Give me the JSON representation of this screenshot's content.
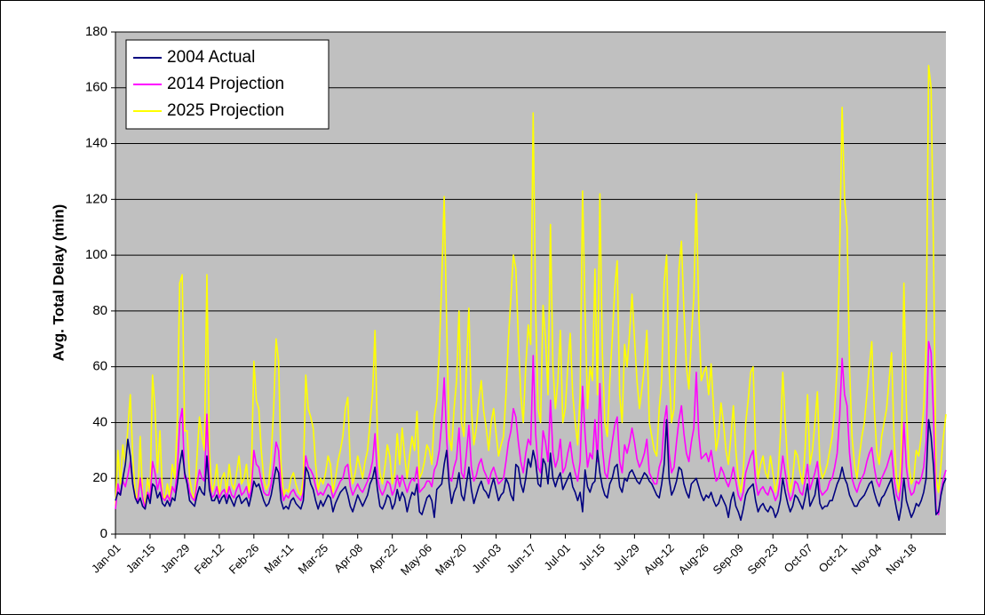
{
  "chart_data": {
    "type": "line",
    "y_label": "Avg. Total Delay (min)",
    "ylim": [
      0,
      180
    ],
    "yticks": [
      0,
      20,
      40,
      60,
      80,
      100,
      120,
      140,
      160,
      180
    ],
    "grid": true,
    "legend": "top-left",
    "categories": [
      "Jan-01",
      null,
      null,
      null,
      null,
      null,
      null,
      null,
      null,
      null,
      null,
      null,
      null,
      null,
      "Jan-15",
      null,
      null,
      null,
      null,
      null,
      null,
      null,
      null,
      null,
      null,
      null,
      null,
      null,
      "Jan-29",
      null,
      null,
      null,
      null,
      null,
      null,
      null,
      null,
      null,
      null,
      null,
      null,
      null,
      "Feb-12",
      null,
      null,
      null,
      null,
      null,
      null,
      null,
      null,
      null,
      null,
      null,
      null,
      null,
      "Feb-26",
      null,
      null,
      null,
      null,
      null,
      null,
      null,
      null,
      null,
      null,
      null,
      null,
      null,
      "Mar-11",
      null,
      null,
      null,
      null,
      null,
      null,
      null,
      null,
      null,
      null,
      null,
      null,
      null,
      "Mar-25",
      null,
      null,
      null,
      null,
      null,
      null,
      null,
      null,
      null,
      null,
      null,
      null,
      null,
      "Apr-08",
      null,
      null,
      null,
      null,
      null,
      null,
      null,
      null,
      null,
      null,
      null,
      null,
      null,
      "Apr-22",
      null,
      null,
      null,
      null,
      null,
      null,
      null,
      null,
      null,
      null,
      null,
      null,
      null,
      "May-06",
      null,
      null,
      null,
      null,
      null,
      null,
      null,
      null,
      null,
      null,
      null,
      null,
      null,
      "May-20",
      null,
      null,
      null,
      null,
      null,
      null,
      null,
      null,
      null,
      null,
      null,
      null,
      null,
      "Jun-03",
      null,
      null,
      null,
      null,
      null,
      null,
      null,
      null,
      null,
      null,
      null,
      null,
      null,
      "Jun-17",
      null,
      null,
      null,
      null,
      null,
      null,
      null,
      null,
      null,
      null,
      null,
      null,
      null,
      "Jul-01",
      null,
      null,
      null,
      null,
      null,
      null,
      null,
      null,
      null,
      null,
      null,
      null,
      null,
      "Jul-15",
      null,
      null,
      null,
      null,
      null,
      null,
      null,
      null,
      null,
      null,
      null,
      null,
      null,
      "Jul-29",
      null,
      null,
      null,
      null,
      null,
      null,
      null,
      null,
      null,
      null,
      null,
      null,
      null,
      "Aug-12",
      null,
      null,
      null,
      null,
      null,
      null,
      null,
      null,
      null,
      null,
      null,
      null,
      null,
      "Aug-26",
      null,
      null,
      null,
      null,
      null,
      null,
      null,
      null,
      null,
      null,
      null,
      null,
      null,
      "Sep-09",
      null,
      null,
      null,
      null,
      null,
      null,
      null,
      null,
      null,
      null,
      null,
      null,
      null,
      "Sep-23",
      null,
      null,
      null,
      null,
      null,
      null,
      null,
      null,
      null,
      null,
      null,
      null,
      null,
      "Oct-07",
      null,
      null,
      null,
      null,
      null,
      null,
      null,
      null,
      null,
      null,
      null,
      null,
      null,
      "Oct-21",
      null,
      null,
      null,
      null,
      null,
      null,
      null,
      null,
      null,
      null,
      null,
      null,
      null,
      "Nov-04",
      null,
      null,
      null,
      null,
      null,
      null,
      null,
      null,
      null,
      null,
      null,
      null,
      null,
      "Nov-18",
      null,
      null,
      null,
      null,
      null,
      null,
      null,
      null,
      null,
      null,
      null,
      null,
      null,
      null
    ],
    "series": [
      {
        "name": "2004 Actual",
        "color": "#000080",
        "values": [
          12,
          15,
          14,
          20,
          25,
          34,
          28,
          18,
          13,
          11,
          13,
          10,
          9,
          14,
          11,
          18,
          17,
          13,
          15,
          11,
          10,
          12,
          10,
          13,
          12,
          18,
          25,
          30,
          22,
          18,
          12,
          11,
          10,
          14,
          17,
          15,
          14,
          28,
          16,
          12,
          12,
          14,
          11,
          13,
          14,
          11,
          14,
          12,
          10,
          13,
          14,
          11,
          12,
          13,
          10,
          14,
          19,
          17,
          18,
          15,
          12,
          10,
          11,
          14,
          19,
          24,
          22,
          12,
          9,
          10,
          9,
          12,
          13,
          11,
          10,
          9,
          12,
          24,
          22,
          18,
          16,
          12,
          9,
          12,
          10,
          12,
          14,
          13,
          8,
          11,
          13,
          15,
          16,
          17,
          14,
          10,
          8,
          11,
          14,
          12,
          10,
          12,
          14,
          18,
          20,
          24,
          16,
          10,
          9,
          11,
          14,
          13,
          9,
          11,
          16,
          12,
          15,
          13,
          8,
          12,
          15,
          14,
          18,
          8,
          7,
          10,
          13,
          14,
          12,
          6,
          16,
          17,
          18,
          25,
          30,
          18,
          11,
          15,
          17,
          22,
          14,
          12,
          18,
          24,
          16,
          11,
          14,
          17,
          19,
          16,
          15,
          13,
          17,
          20,
          16,
          12,
          14,
          15,
          20,
          18,
          14,
          12,
          25,
          24,
          18,
          15,
          20,
          27,
          24,
          30,
          26,
          18,
          17,
          27,
          25,
          18,
          29,
          20,
          17,
          20,
          22,
          16,
          18,
          20,
          22,
          17,
          15,
          12,
          15,
          8,
          23,
          17,
          15,
          18,
          19,
          30,
          22,
          17,
          14,
          13,
          18,
          20,
          24,
          25,
          17,
          15,
          20,
          19,
          22,
          23,
          21,
          19,
          18,
          20,
          22,
          21,
          19,
          18,
          16,
          14,
          13,
          18,
          25,
          41,
          20,
          14,
          16,
          19,
          24,
          23,
          18,
          15,
          13,
          18,
          19,
          20,
          17,
          14,
          12,
          14,
          13,
          15,
          12,
          10,
          11,
          14,
          12,
          10,
          6,
          12,
          15,
          10,
          8,
          5,
          9,
          14,
          16,
          17,
          18,
          12,
          8,
          10,
          11,
          9,
          8,
          10,
          9,
          6,
          8,
          12,
          20,
          15,
          11,
          8,
          10,
          14,
          13,
          11,
          9,
          13,
          18,
          10,
          12,
          14,
          20,
          11,
          9,
          10,
          10,
          12,
          12,
          15,
          18,
          20,
          24,
          20,
          18,
          14,
          12,
          10,
          10,
          12,
          13,
          14,
          16,
          18,
          19,
          15,
          12,
          10,
          13,
          14,
          16,
          18,
          20,
          14,
          9,
          5,
          10,
          20,
          12,
          9,
          6,
          8,
          11,
          10,
          12,
          15,
          20,
          41,
          35,
          24,
          7,
          8,
          14,
          18,
          20
        ]
      },
      {
        "name": "2014 Projection",
        "color": "#FF00FF",
        "values": [
          9,
          18,
          14,
          19,
          17,
          21,
          26,
          18,
          13,
          12,
          20,
          13,
          9,
          15,
          13,
          26,
          22,
          16,
          20,
          13,
          12,
          14,
          12,
          17,
          15,
          22,
          40,
          45,
          20,
          20,
          15,
          13,
          12,
          18,
          23,
          20,
          19,
          43,
          19,
          13,
          14,
          17,
          13,
          15,
          16,
          13,
          17,
          14,
          13,
          16,
          18,
          14,
          15,
          17,
          13,
          16,
          30,
          25,
          24,
          19,
          15,
          14,
          14,
          18,
          24,
          33,
          30,
          17,
          12,
          14,
          13,
          15,
          16,
          14,
          13,
          12,
          15,
          28,
          24,
          23,
          21,
          17,
          14,
          15,
          14,
          16,
          18,
          17,
          13,
          15,
          17,
          19,
          20,
          24,
          25,
          17,
          14,
          16,
          18,
          16,
          15,
          17,
          19,
          22,
          26,
          36,
          20,
          16,
          14,
          16,
          19,
          18,
          14,
          16,
          21,
          17,
          21,
          18,
          15,
          18,
          20,
          19,
          24,
          15,
          16,
          17,
          19,
          19,
          17,
          23,
          25,
          30,
          40,
          56,
          34,
          20,
          19,
          24,
          27,
          38,
          22,
          20,
          29,
          39,
          24,
          19,
          21,
          25,
          27,
          23,
          21,
          18,
          22,
          24,
          21,
          18,
          19,
          20,
          26,
          33,
          37,
          45,
          42,
          33,
          26,
          22,
          29,
          34,
          32,
          64,
          36,
          24,
          22,
          37,
          33,
          26,
          48,
          29,
          24,
          27,
          34,
          22,
          24,
          29,
          33,
          26,
          22,
          19,
          26,
          53,
          36,
          24,
          29,
          27,
          41,
          26,
          54,
          31,
          22,
          20,
          27,
          33,
          39,
          42,
          26,
          22,
          32,
          29,
          33,
          38,
          33,
          27,
          24,
          26,
          29,
          34,
          22,
          20,
          18,
          18,
          24,
          27,
          40,
          46,
          29,
          22,
          24,
          33,
          41,
          46,
          36,
          29,
          26,
          33,
          38,
          58,
          36,
          27,
          28,
          29,
          26,
          30,
          24,
          19,
          20,
          24,
          22,
          19,
          17,
          20,
          24,
          19,
          14,
          12,
          15,
          22,
          25,
          28,
          30,
          19,
          14,
          16,
          17,
          15,
          14,
          17,
          15,
          12,
          14,
          20,
          28,
          22,
          16,
          12,
          14,
          19,
          18,
          15,
          14,
          19,
          25,
          16,
          19,
          22,
          26,
          16,
          14,
          15,
          16,
          19,
          20,
          24,
          29,
          42,
          63,
          50,
          46,
          29,
          20,
          17,
          15,
          18,
          20,
          22,
          26,
          29,
          31,
          24,
          19,
          17,
          20,
          22,
          24,
          27,
          30,
          20,
          14,
          12,
          19,
          40,
          24,
          17,
          14,
          15,
          19,
          18,
          20,
          24,
          33,
          69,
          65,
          42,
          9,
          7,
          15,
          20,
          23
        ]
      },
      {
        "name": "2025 Projection",
        "color": "#FFFF00",
        "values": [
          10,
          30,
          18,
          32,
          25,
          38,
          50,
          28,
          15,
          12,
          35,
          14,
          10,
          20,
          15,
          57,
          45,
          22,
          37,
          15,
          12,
          18,
          13,
          25,
          20,
          40,
          90,
          93,
          37,
          37,
          20,
          15,
          12,
          28,
          42,
          35,
          30,
          93,
          30,
          15,
          18,
          25,
          14,
          20,
          22,
          15,
          25,
          18,
          16,
          22,
          28,
          18,
          20,
          25,
          15,
          22,
          62,
          48,
          45,
          30,
          20,
          16,
          18,
          28,
          45,
          70,
          62,
          25,
          14,
          16,
          15,
          20,
          22,
          18,
          15,
          14,
          20,
          57,
          45,
          42,
          38,
          25,
          16,
          20,
          18,
          22,
          28,
          25,
          15,
          20,
          26,
          30,
          35,
          45,
          49,
          25,
          18,
          22,
          28,
          24,
          20,
          26,
          30,
          40,
          50,
          73,
          35,
          22,
          18,
          24,
          32,
          28,
          18,
          22,
          36,
          25,
          38,
          28,
          20,
          28,
          35,
          30,
          44,
          20,
          22,
          26,
          32,
          30,
          25,
          42,
          48,
          65,
          90,
          121,
          75,
          35,
          30,
          45,
          55,
          80,
          40,
          35,
          60,
          81,
          45,
          32,
          38,
          48,
          55,
          44,
          38,
          30,
          40,
          45,
          36,
          28,
          32,
          35,
          50,
          70,
          85,
          100,
          95,
          70,
          50,
          40,
          60,
          75,
          68,
          151,
          80,
          45,
          40,
          82,
          70,
          50,
          111,
          60,
          45,
          55,
          73,
          40,
          45,
          60,
          72,
          50,
          40,
          32,
          50,
          123,
          80,
          45,
          60,
          55,
          95,
          50,
          122,
          65,
          40,
          35,
          55,
          70,
          88,
          98,
          50,
          40,
          68,
          60,
          72,
          86,
          70,
          55,
          45,
          52,
          60,
          73,
          40,
          35,
          30,
          28,
          45,
          55,
          90,
          100,
          60,
          40,
          45,
          70,
          95,
          105,
          80,
          60,
          52,
          70,
          85,
          122,
          80,
          55,
          58,
          60,
          50,
          61,
          45,
          30,
          35,
          47,
          40,
          30,
          25,
          35,
          46,
          30,
          20,
          15,
          22,
          40,
          48,
          58,
          60,
          30,
          20,
          25,
          28,
          22,
          20,
          28,
          22,
          15,
          20,
          35,
          58,
          40,
          25,
          15,
          20,
          30,
          28,
          22,
          18,
          30,
          50,
          25,
          30,
          40,
          51,
          25,
          20,
          22,
          25,
          30,
          35,
          45,
          60,
          100,
          153,
          120,
          110,
          60,
          35,
          25,
          20,
          28,
          35,
          40,
          50,
          60,
          69,
          45,
          30,
          25,
          35,
          40,
          45,
          55,
          65,
          35,
          20,
          15,
          30,
          90,
          45,
          25,
          18,
          20,
          30,
          28,
          35,
          45,
          68,
          168,
          160,
          100,
          20,
          15,
          25,
          35,
          43
        ]
      }
    ]
  }
}
